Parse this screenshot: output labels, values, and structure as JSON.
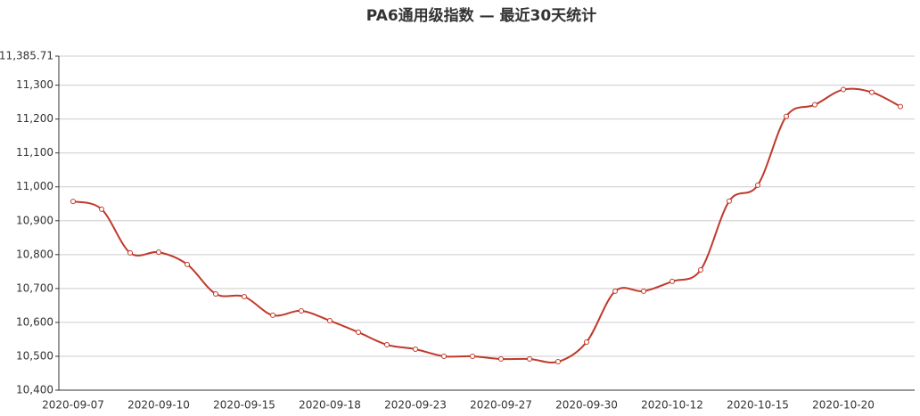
{
  "chart_data": {
    "type": "line",
    "title": "PA6通用级指数 — 最近30天统计",
    "categories": [
      "2020-09-07",
      null,
      null,
      "2020-09-10",
      null,
      null,
      "2020-09-15",
      null,
      null,
      "2020-09-18",
      null,
      null,
      "2020-09-23",
      null,
      null,
      "2020-09-27",
      null,
      null,
      "2020-09-30",
      null,
      null,
      "2020-10-12",
      null,
      null,
      "2020-10-15",
      null,
      null,
      "2020-10-20",
      null,
      null
    ],
    "values": [
      10957,
      10934,
      10805,
      10807,
      10771,
      10684,
      10676,
      10621,
      10634,
      10605,
      10571,
      10534,
      10521,
      10500,
      10500,
      10492,
      10492,
      10484,
      10542,
      10692,
      10692,
      10721,
      10755,
      10958,
      11005,
      11208,
      11242,
      11287,
      11279,
      11237
    ],
    "color": "#c0392b",
    "ylim": [
      10400,
      11385.71
    ],
    "yticks": [
      {
        "value": 10400,
        "label": "10,400"
      },
      {
        "value": 10500,
        "label": "10,500"
      },
      {
        "value": 10600,
        "label": "10,600"
      },
      {
        "value": 10700,
        "label": "10,700"
      },
      {
        "value": 10800,
        "label": "10,800"
      },
      {
        "value": 10900,
        "label": "10,900"
      },
      {
        "value": 11000,
        "label": "11,000"
      },
      {
        "value": 11100,
        "label": "11,100"
      },
      {
        "value": 11200,
        "label": "11,200"
      },
      {
        "value": 11300,
        "label": "11,300"
      },
      {
        "value": 11385.71,
        "label": "11,385.71"
      }
    ],
    "grid": true
  }
}
